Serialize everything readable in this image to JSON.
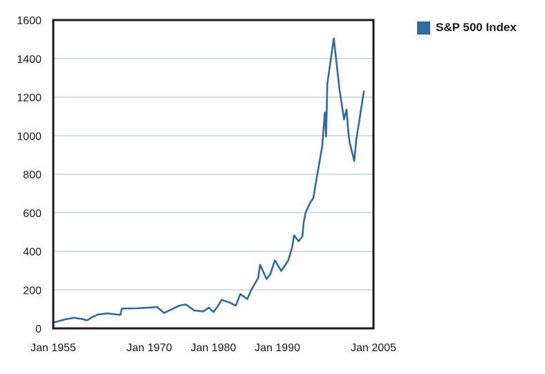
{
  "chart_data": {
    "type": "line",
    "title": "",
    "xlabel": "",
    "ylabel": "",
    "ylim": [
      0,
      1600
    ],
    "yticks": [
      0,
      200,
      400,
      600,
      800,
      1000,
      1200,
      1400,
      1600
    ],
    "xticks": [
      {
        "value": 1955,
        "label": "Jan 1955"
      },
      {
        "value": 1970,
        "label": "Jan 1970"
      },
      {
        "value": 1980,
        "label": "Jan 1980"
      },
      {
        "value": 1990,
        "label": "Jan 1990"
      },
      {
        "value": 2005,
        "label": "Jan 2005"
      }
    ],
    "grid": true,
    "legend_position": "top-right",
    "series": [
      {
        "name": "S&P 500 Index",
        "color": "#2f6aa3",
        "x": [
          1955.0,
          1957.0,
          1958.3,
          1959.3,
          1960.3,
          1961.0,
          1962.0,
          1963.5,
          1964.7,
          1965.5,
          1965.7,
          1968.0,
          1970.0,
          1971.2,
          1972.3,
          1974.0,
          1974.7,
          1975.7,
          1977.0,
          1978.4,
          1979.3,
          1980.0,
          1980.6,
          1981.3,
          1982.6,
          1983.5,
          1984.2,
          1985.3,
          1985.9,
          1987.0,
          1987.3,
          1988.3,
          1988.9,
          1989.6,
          1990.6,
          1991.7,
          1992.3,
          1992.6,
          1993.3,
          1993.9,
          1994.1,
          1994.4,
          1995.1,
          1995.6,
          1996.2,
          1997.0,
          1997.4,
          1997.6,
          1997.8,
          1998.8,
          1999.7,
          2000.4,
          2000.8,
          2001.1,
          2001.3,
          2002.0,
          2002.3,
          2002.8,
          2003.5
        ],
        "values": [
          30,
          48,
          55,
          50,
          42,
          57,
          72,
          78,
          73,
          70,
          103,
          104,
          108,
          111,
          80,
          107,
          118,
          124,
          93,
          88,
          108,
          85,
          110,
          148,
          133,
          118,
          178,
          152,
          198,
          262,
          330,
          256,
          282,
          353,
          298,
          353,
          420,
          483,
          452,
          477,
          550,
          600,
          652,
          675,
          793,
          945,
          1120,
          995,
          1270,
          1505,
          1240,
          1085,
          1135,
          1008,
          963,
          868,
          975,
          1080,
          1230
        ]
      }
    ]
  }
}
